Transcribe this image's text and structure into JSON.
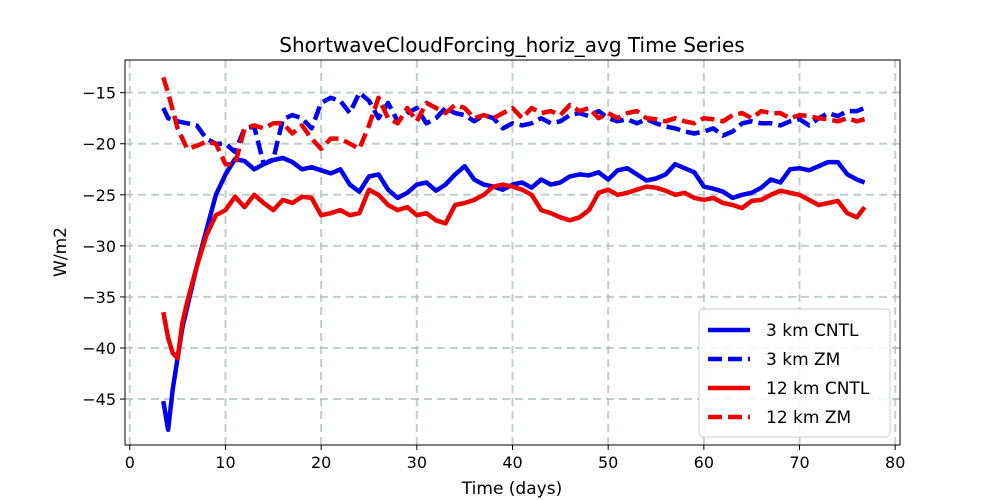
{
  "chart_data": {
    "type": "line",
    "title": "ShortwaveCloudForcing_horiz_avg Time Series",
    "xlabel": "Time (days)",
    "ylabel": "W/m2",
    "xlim": [
      -0.5,
      80.5
    ],
    "ylim": [
      -49.5,
      -11.8
    ],
    "xticks": [
      0,
      10,
      20,
      30,
      40,
      50,
      60,
      70,
      80
    ],
    "yticks": [
      -45,
      -40,
      -35,
      -30,
      -25,
      -20,
      -15
    ],
    "ytick_labels": [
      "−45",
      "−40",
      "−35",
      "−30",
      "−25",
      "−20",
      "−15"
    ],
    "grid": true,
    "legend_position": "lower-right",
    "series": [
      {
        "name": "3 km CNTL",
        "color": "#0000ee",
        "dash": "solid",
        "x": [
          3.5,
          4,
          4.5,
          5,
          5.5,
          6,
          7,
          8,
          9,
          10,
          11,
          12,
          13,
          14,
          15,
          16,
          17,
          18,
          19,
          20,
          21,
          22,
          23,
          24,
          25,
          26,
          27,
          28,
          29,
          30,
          31,
          32,
          33,
          34,
          35,
          36,
          37,
          38,
          39,
          40,
          41,
          42,
          43,
          44,
          45,
          46,
          47,
          48,
          49,
          50,
          51,
          52,
          53,
          54,
          55,
          56,
          57,
          58,
          59,
          60,
          61,
          62,
          63,
          64,
          65,
          66,
          67,
          68,
          69,
          70,
          71,
          72,
          73,
          74,
          75,
          76,
          76.8
        ],
        "y": [
          -45.2,
          -48.0,
          -44.0,
          -41.0,
          -38.0,
          -36.0,
          -32.0,
          -28.5,
          -25.0,
          -23.0,
          -21.5,
          -21.7,
          -22.5,
          -22.0,
          -21.6,
          -21.4,
          -21.8,
          -22.5,
          -22.3,
          -22.6,
          -22.9,
          -22.5,
          -24.0,
          -24.7,
          -23.2,
          -23.0,
          -24.5,
          -25.3,
          -24.8,
          -24.0,
          -23.8,
          -24.6,
          -24.0,
          -23.0,
          -22.2,
          -23.5,
          -24.0,
          -24.2,
          -24.5,
          -24.0,
          -23.8,
          -24.3,
          -23.5,
          -24.0,
          -23.8,
          -23.2,
          -23.0,
          -23.1,
          -22.8,
          -23.5,
          -22.6,
          -22.4,
          -23.0,
          -23.6,
          -23.4,
          -23.0,
          -22.0,
          -22.4,
          -22.8,
          -24.2,
          -24.4,
          -24.7,
          -25.3,
          -25.0,
          -24.8,
          -24.3,
          -23.5,
          -23.8,
          -22.5,
          -22.4,
          -22.6,
          -22.2,
          -21.8,
          -21.8,
          -23.0,
          -23.5,
          -23.8
        ]
      },
      {
        "name": "3 km ZM",
        "color": "#0000ee",
        "dash": "dashed",
        "x": [
          3.5,
          4,
          5,
          6,
          7,
          8,
          9,
          10,
          11,
          12,
          13,
          14,
          15,
          16,
          17,
          18,
          19,
          20,
          21,
          22,
          23,
          24,
          25,
          26,
          27,
          28,
          29,
          30,
          31,
          32,
          33,
          34,
          35,
          36,
          37,
          38,
          39,
          40,
          41,
          42,
          43,
          44,
          45,
          46,
          47,
          48,
          49,
          50,
          51,
          52,
          53,
          54,
          55,
          56,
          57,
          58,
          59,
          60,
          61,
          62,
          63,
          64,
          65,
          66,
          67,
          68,
          69,
          70,
          71,
          72,
          73,
          74,
          75,
          76,
          76.8
        ],
        "y": [
          -16.5,
          -17.5,
          -17.8,
          -18.0,
          -18.2,
          -19.5,
          -20.0,
          -20.0,
          -20.8,
          -18.5,
          -18.3,
          -22.0,
          -21.5,
          -17.6,
          -17.2,
          -17.5,
          -18.5,
          -16.0,
          -15.5,
          -15.8,
          -17.0,
          -15.0,
          -15.8,
          -17.5,
          -16.0,
          -17.8,
          -17.0,
          -16.5,
          -18.0,
          -17.5,
          -16.5,
          -17.0,
          -17.2,
          -17.8,
          -17.2,
          -17.5,
          -18.5,
          -18.0,
          -18.2,
          -18.0,
          -17.5,
          -18.0,
          -17.8,
          -17.2,
          -17.0,
          -17.3,
          -16.8,
          -17.5,
          -17.8,
          -17.6,
          -18.0,
          -17.6,
          -18.0,
          -18.3,
          -18.5,
          -18.8,
          -19.0,
          -18.8,
          -18.5,
          -19.2,
          -18.8,
          -18.0,
          -17.8,
          -18.0,
          -18.0,
          -18.2,
          -17.8,
          -17.6,
          -18.2,
          -17.5,
          -17.0,
          -17.3,
          -16.8,
          -16.8,
          -16.5
        ]
      },
      {
        "name": "12 km CNTL",
        "color": "#ee0000",
        "dash": "solid",
        "x": [
          3.5,
          4,
          4.5,
          5,
          5.5,
          6,
          7,
          8,
          9,
          10,
          11,
          12,
          13,
          14,
          15,
          16,
          17,
          18,
          19,
          20,
          21,
          22,
          23,
          24,
          25,
          26,
          27,
          28,
          29,
          30,
          31,
          32,
          33,
          34,
          35,
          36,
          37,
          38,
          39,
          40,
          41,
          42,
          43,
          44,
          45,
          46,
          47,
          48,
          49,
          50,
          51,
          52,
          53,
          54,
          55,
          56,
          57,
          58,
          59,
          60,
          61,
          62,
          63,
          64,
          65,
          66,
          67,
          68,
          69,
          70,
          71,
          72,
          73,
          74,
          75,
          76,
          76.8
        ],
        "y": [
          -36.5,
          -39.0,
          -40.5,
          -41.0,
          -37.5,
          -35.5,
          -32.0,
          -29.0,
          -27.0,
          -26.5,
          -25.2,
          -26.2,
          -25.0,
          -25.8,
          -26.5,
          -25.5,
          -25.8,
          -25.2,
          -25.3,
          -27.0,
          -26.8,
          -26.5,
          -27.0,
          -26.8,
          -24.5,
          -25.0,
          -26.0,
          -26.5,
          -26.2,
          -27.0,
          -26.8,
          -27.5,
          -27.8,
          -26.0,
          -25.8,
          -25.5,
          -25.0,
          -24.2,
          -24.0,
          -24.2,
          -24.5,
          -25.0,
          -26.5,
          -26.8,
          -27.2,
          -27.5,
          -27.2,
          -26.5,
          -24.8,
          -24.5,
          -25.0,
          -24.8,
          -24.5,
          -24.2,
          -24.3,
          -24.6,
          -25.0,
          -24.8,
          -25.3,
          -25.5,
          -25.3,
          -25.8,
          -26.0,
          -26.3,
          -25.6,
          -25.5,
          -25.0,
          -24.6,
          -24.8,
          -25.0,
          -25.5,
          -26.0,
          -25.8,
          -25.6,
          -26.8,
          -27.2,
          -26.2
        ]
      },
      {
        "name": "12 km ZM",
        "color": "#ee0000",
        "dash": "dashed",
        "x": [
          3.5,
          4,
          5,
          6,
          7,
          8,
          9,
          10,
          11,
          12,
          13,
          14,
          15,
          16,
          17,
          18,
          19,
          20,
          21,
          22,
          23,
          24,
          25,
          26,
          27,
          28,
          29,
          30,
          31,
          32,
          33,
          34,
          35,
          36,
          37,
          38,
          39,
          40,
          41,
          42,
          43,
          44,
          45,
          46,
          47,
          48,
          49,
          50,
          51,
          52,
          53,
          54,
          55,
          56,
          57,
          58,
          59,
          60,
          61,
          62,
          63,
          64,
          65,
          66,
          67,
          68,
          69,
          70,
          71,
          72,
          73,
          74,
          75,
          76,
          76.8
        ],
        "y": [
          -13.5,
          -15.0,
          -18.5,
          -20.5,
          -20.2,
          -19.8,
          -20.0,
          -22.0,
          -22.0,
          -18.5,
          -18.2,
          -18.5,
          -18.0,
          -18.0,
          -19.0,
          -18.2,
          -19.5,
          -20.5,
          -19.5,
          -19.5,
          -20.0,
          -20.5,
          -18.2,
          -15.5,
          -17.5,
          -18.0,
          -16.5,
          -17.8,
          -16.0,
          -16.5,
          -17.0,
          -16.2,
          -16.5,
          -17.5,
          -17.2,
          -17.5,
          -17.0,
          -16.5,
          -17.5,
          -16.5,
          -17.0,
          -16.8,
          -17.2,
          -16.2,
          -16.8,
          -16.5,
          -17.5,
          -17.0,
          -17.5,
          -17.0,
          -16.8,
          -17.5,
          -17.6,
          -17.8,
          -17.5,
          -17.8,
          -18.0,
          -17.5,
          -17.6,
          -17.8,
          -17.2,
          -17.0,
          -17.5,
          -16.8,
          -17.0,
          -17.0,
          -17.5,
          -17.2,
          -17.3,
          -17.5,
          -17.6,
          -17.8,
          -17.5,
          -17.8,
          -17.6
        ]
      }
    ]
  }
}
